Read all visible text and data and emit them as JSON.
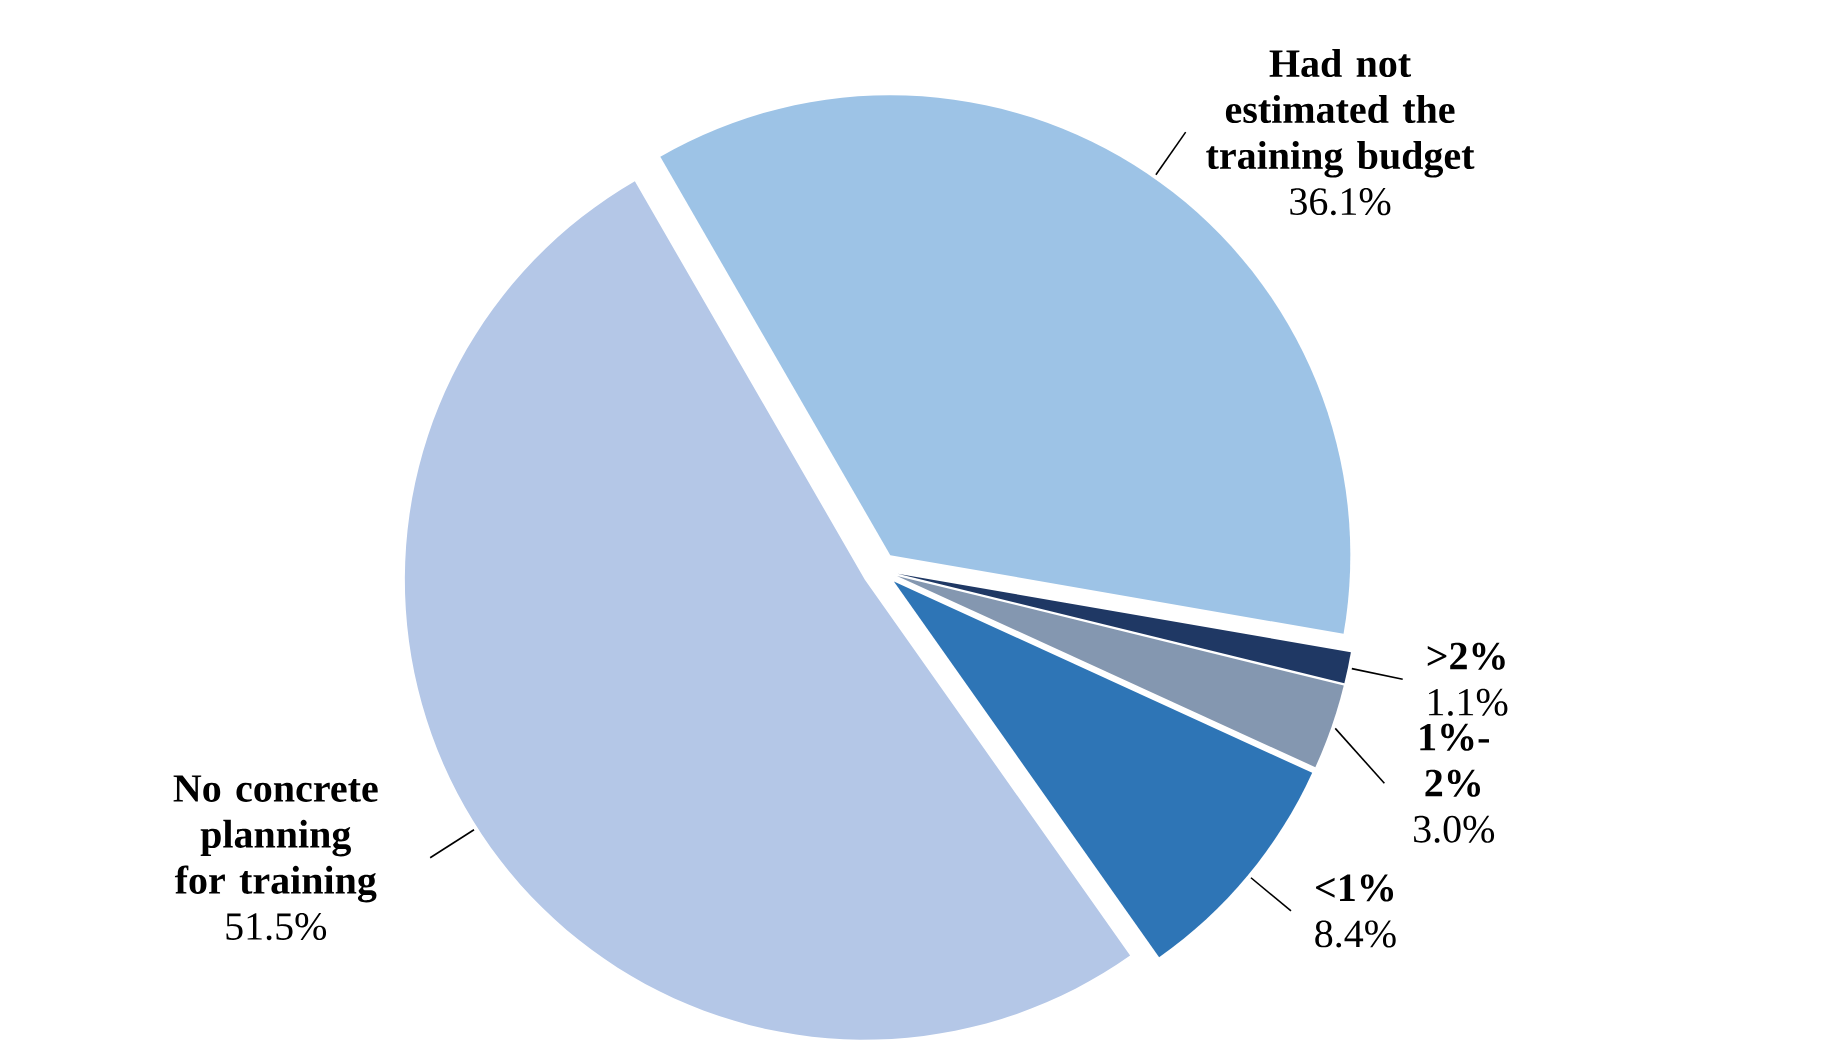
{
  "chart_data": {
    "type": "pie",
    "categories": [
      "Had not estimated the training budget",
      ">2%",
      "1%-2%",
      "<1%",
      "No concrete planning for training"
    ],
    "values": [
      36.1,
      1.1,
      3.0,
      8.4,
      51.5
    ],
    "value_labels": [
      "36.1%",
      "1.1%",
      "3.0%",
      "8.4%",
      "51.5%"
    ],
    "colors": [
      "#9dc3e6",
      "#1f3864",
      "#8497b0",
      "#2e75b6",
      "#b4c7e7"
    ]
  }
}
